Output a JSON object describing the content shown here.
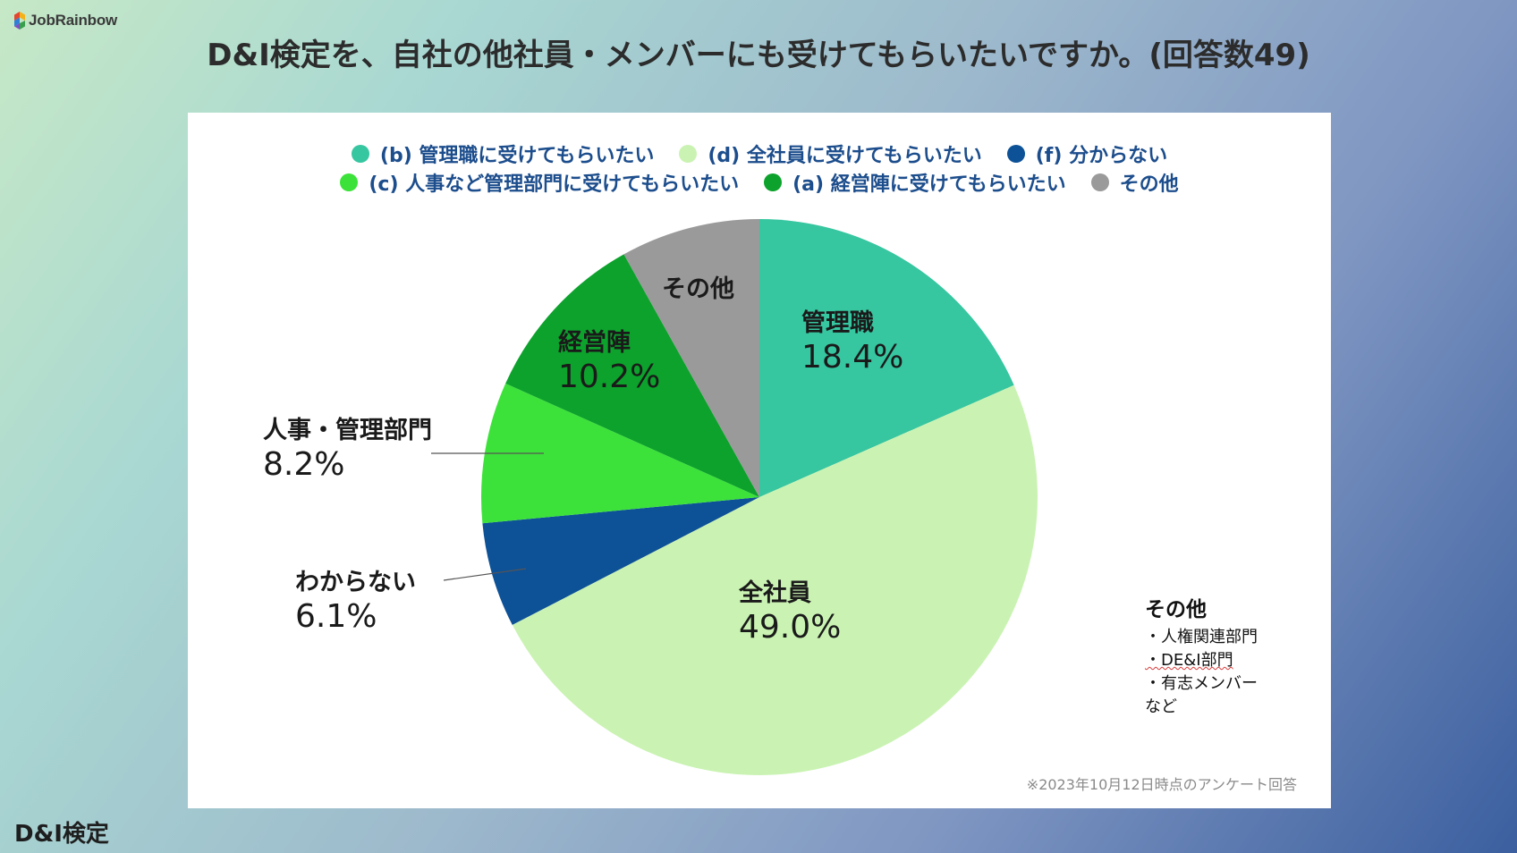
{
  "brand": {
    "name": "JobRainbow"
  },
  "title": "D&I検定を、自社の他社員・メンバーにも受けてもらいたいですか。(回答数49)",
  "legend": {
    "row1": [
      {
        "label": "(b) 管理職に受けてもらいたい",
        "color": "#36c6a0"
      },
      {
        "label": "(d) 全社員に受けてもらいたい",
        "color": "#caf3b3"
      },
      {
        "label": "(f) 分からない",
        "color": "#0d5197"
      }
    ],
    "row2": [
      {
        "label": "(c) 人事など管理部門に受けてもらいたい",
        "color": "#3ce23a"
      },
      {
        "label": "(a) 経営陣に受けてもらいたい",
        "color": "#0ca22c"
      },
      {
        "label": "その他",
        "color": "#9a9a9a"
      }
    ]
  },
  "chart_data": {
    "type": "pie",
    "title": "D&I検定を、自社の他社員・メンバーにも受けてもらいたいですか。(回答数49)",
    "start": "12 o'clock, clockwise",
    "slices": [
      {
        "name": "管理職",
        "legend": "(b) 管理職に受けてもらいたい",
        "value": 18.4,
        "label": "18.4%",
        "color": "#36c6a0"
      },
      {
        "name": "全社員",
        "legend": "(d) 全社員に受けてもらいたい",
        "value": 49.0,
        "label": "49.0%",
        "color": "#caf3b3"
      },
      {
        "name": "わからない",
        "legend": "(f) 分からない",
        "value": 6.1,
        "label": "6.1%",
        "color": "#0d5197"
      },
      {
        "name": "人事・管理部門",
        "legend": "(c) 人事など管理部門に受けてもらいたい",
        "value": 8.2,
        "label": "8.2%",
        "color": "#3ce23a"
      },
      {
        "name": "経営陣",
        "legend": "(a) 経営陣に受けてもらいたい",
        "value": 10.2,
        "label": "10.2%",
        "color": "#0ca22c"
      },
      {
        "name": "その他",
        "legend": "その他",
        "value": 8.1,
        "label": "",
        "color": "#9a9a9a"
      }
    ]
  },
  "labels": {
    "kanrishoku": {
      "name": "管理職",
      "pct": "18.4%"
    },
    "zenshain": {
      "name": "全社員",
      "pct": "49.0%"
    },
    "wakaranai": {
      "name": "わからない",
      "pct": "6.1%"
    },
    "jinji": {
      "name": "人事・管理部門",
      "pct": "8.2%"
    },
    "keiei": {
      "name": "経営陣",
      "pct": "10.2%"
    },
    "sonota": {
      "name": "その他"
    }
  },
  "note": {
    "title": "その他",
    "items": [
      "・人権関連部門",
      "・DE&I部門",
      "・有志メンバー",
      "など"
    ]
  },
  "footnote": "※2023年10月12日時点のアンケート回答",
  "bottom_logo": "D&I検定"
}
